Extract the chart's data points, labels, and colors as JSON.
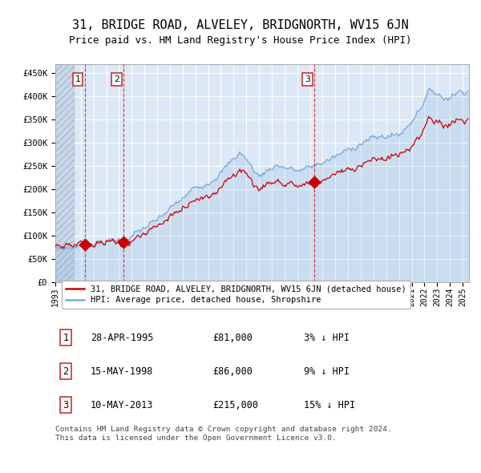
{
  "title": "31, BRIDGE ROAD, ALVELEY, BRIDGNORTH, WV15 6JN",
  "subtitle": "Price paid vs. HM Land Registry's House Price Index (HPI)",
  "title_fontsize": 11,
  "subtitle_fontsize": 9,
  "ylabel_ticks": [
    "£0",
    "£50K",
    "£100K",
    "£150K",
    "£200K",
    "£250K",
    "£300K",
    "£350K",
    "£400K",
    "£450K"
  ],
  "ytick_values": [
    0,
    50000,
    100000,
    150000,
    200000,
    250000,
    300000,
    350000,
    400000,
    450000
  ],
  "ylim": [
    0,
    470000
  ],
  "xlim_start": 1993.0,
  "xlim_end": 2025.5,
  "sales": [
    {
      "label": "1",
      "date": 1995.32,
      "price": 81000,
      "color": "#cc0000"
    },
    {
      "label": "2",
      "date": 1998.37,
      "price": 86000,
      "color": "#cc0000"
    },
    {
      "label": "3",
      "date": 2013.36,
      "price": 215000,
      "color": "#cc0000"
    }
  ],
  "vline_dates": [
    1995.32,
    1998.37,
    2013.36
  ],
  "hpi_color": "#7aabdc",
  "price_color": "#cc0000",
  "bg_color": "#dce8f5",
  "grid_color": "#ffffff",
  "legend_entries": [
    "31, BRIDGE ROAD, ALVELEY, BRIDGNORTH, WV15 6JN (detached house)",
    "HPI: Average price, detached house, Shropshire"
  ],
  "table_rows": [
    {
      "num": "1",
      "date": "28-APR-1995",
      "price": "£81,000",
      "note": "3% ↓ HPI"
    },
    {
      "num": "2",
      "date": "15-MAY-1998",
      "price": "£86,000",
      "note": "9% ↓ HPI"
    },
    {
      "num": "3",
      "date": "10-MAY-2013",
      "price": "£215,000",
      "note": "15% ↓ HPI"
    }
  ],
  "footnote": "Contains HM Land Registry data © Crown copyright and database right 2024.\nThis data is licensed under the Open Government Licence v3.0."
}
